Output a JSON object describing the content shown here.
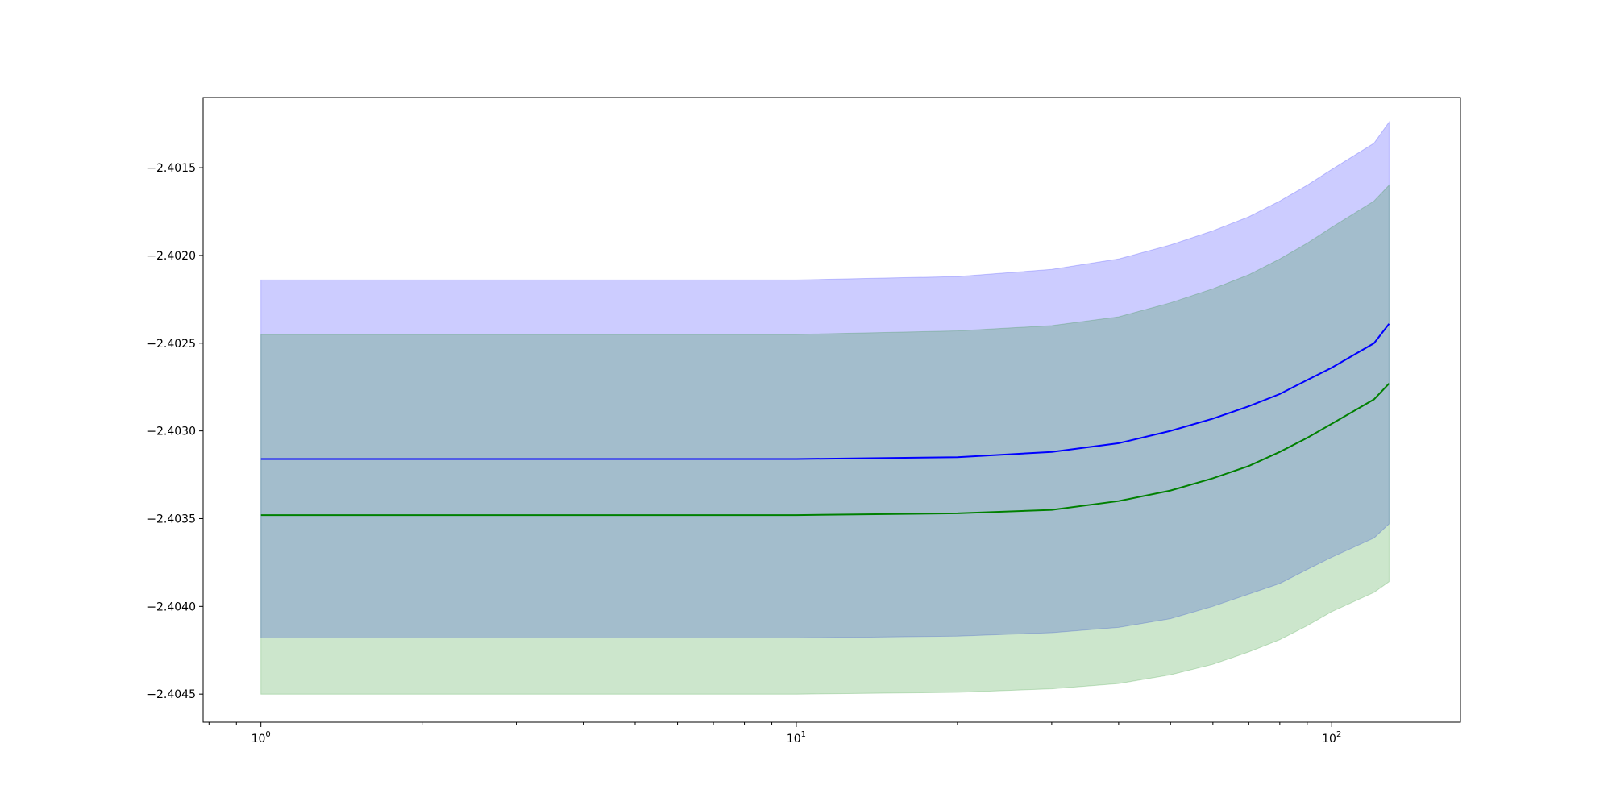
{
  "chart_data": {
    "type": "line",
    "title": "",
    "xlabel": "",
    "ylabel": "",
    "xscale": "log",
    "xlim": [
      0.78,
      174
    ],
    "ylim": [
      -2.40466,
      -2.4011
    ],
    "x_ticks": [
      {
        "value": 1,
        "base": "10",
        "exp": "0"
      },
      {
        "value": 10,
        "base": "10",
        "exp": "1"
      },
      {
        "value": 100,
        "base": "10",
        "exp": "2"
      }
    ],
    "y_ticks": [
      {
        "value": -2.4015,
        "label": "−2.4015"
      },
      {
        "value": -2.402,
        "label": "−2.4020"
      },
      {
        "value": -2.4025,
        "label": "−2.4025"
      },
      {
        "value": -2.403,
        "label": "−2.4030"
      },
      {
        "value": -2.4035,
        "label": "−2.4035"
      },
      {
        "value": -2.404,
        "label": "−2.4040"
      },
      {
        "value": -2.4045,
        "label": "−2.4045"
      }
    ],
    "grid": false,
    "legend": "none",
    "x": [
      1,
      3,
      10,
      20,
      30,
      40,
      50,
      60,
      70,
      80,
      90,
      100,
      120,
      128
    ],
    "series": [
      {
        "color": "#0000ff",
        "band_color": "#0000ff",
        "band_opacity": 0.2,
        "values": [
          -2.40316,
          -2.40316,
          -2.40316,
          -2.40315,
          -2.40312,
          -2.40307,
          -2.403,
          -2.40293,
          -2.40286,
          -2.40279,
          -2.40271,
          -2.40264,
          -2.4025,
          -2.40239
        ],
        "upper": [
          -2.40214,
          -2.40214,
          -2.40214,
          -2.40212,
          -2.40208,
          -2.40202,
          -2.40194,
          -2.40186,
          -2.40178,
          -2.40169,
          -2.4016,
          -2.40151,
          -2.40136,
          -2.40124
        ],
        "lower": [
          -2.40418,
          -2.40418,
          -2.40418,
          -2.40417,
          -2.40415,
          -2.40412,
          -2.40407,
          -2.404,
          -2.40393,
          -2.40387,
          -2.40379,
          -2.40372,
          -2.40361,
          -2.40353
        ]
      },
      {
        "color": "#008000",
        "band_color": "#008000",
        "band_opacity": 0.2,
        "values": [
          -2.40348,
          -2.40348,
          -2.40348,
          -2.40347,
          -2.40345,
          -2.4034,
          -2.40334,
          -2.40327,
          -2.4032,
          -2.40312,
          -2.40304,
          -2.40296,
          -2.40282,
          -2.40273
        ],
        "upper": [
          -2.40245,
          -2.40245,
          -2.40245,
          -2.40243,
          -2.4024,
          -2.40235,
          -2.40227,
          -2.40219,
          -2.40211,
          -2.40202,
          -2.40193,
          -2.40184,
          -2.40169,
          -2.4016
        ],
        "lower": [
          -2.4045,
          -2.4045,
          -2.4045,
          -2.40449,
          -2.40447,
          -2.40444,
          -2.40439,
          -2.40433,
          -2.40426,
          -2.40419,
          -2.40411,
          -2.40403,
          -2.40392,
          -2.40386
        ]
      }
    ]
  }
}
